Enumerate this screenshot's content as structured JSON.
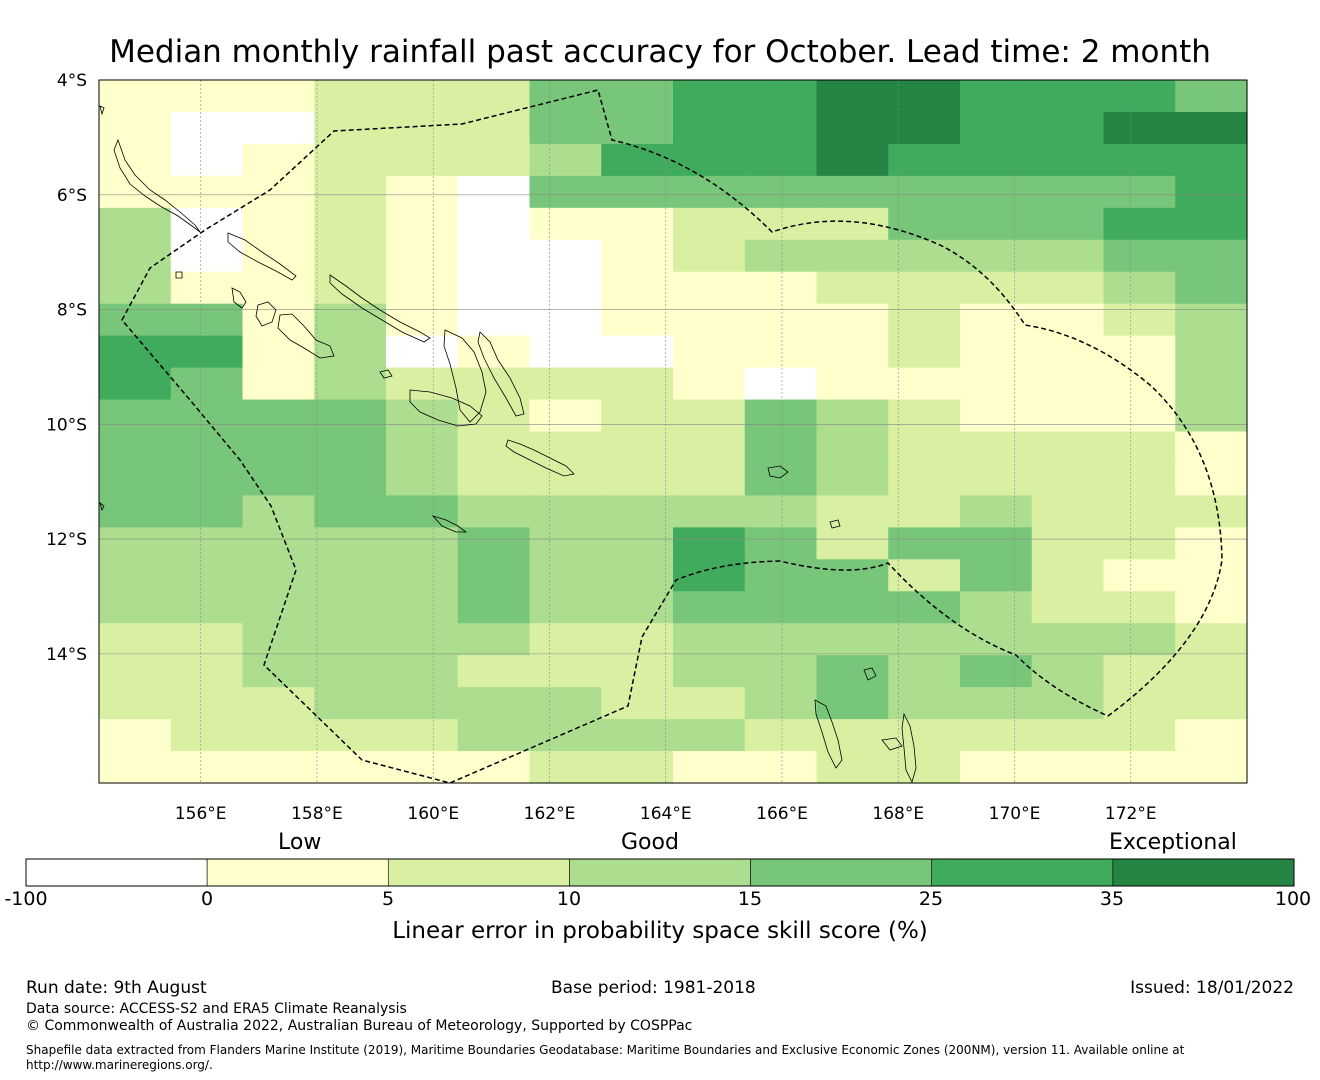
{
  "title": "Median monthly rainfall past accuracy for October. Lead time: 2 month",
  "map": {
    "lon_range": [
      154.25,
      174.0
    ],
    "lat_range": [
      -16.25,
      -4.0
    ],
    "lon_ticks": [
      "156°E",
      "158°E",
      "160°E",
      "162°E",
      "164°E",
      "166°E",
      "168°E",
      "170°E",
      "172°E"
    ],
    "lat_ticks": [
      "4°S",
      "6°S",
      "8°S",
      "10°S",
      "12°S",
      "14°S"
    ],
    "grid_rows": [
      "1112224455665554",
      "1002224455665566",
      "1012223555655555",
      "1112104444444445",
      "3012101122244455",
      "3012100123333344",
      "3112100111222234",
      "4413100111121123",
      "5513010011121113",
      "5413222210111113",
      "4444321224321113",
      "4444322224322221",
      "4444322224322221",
      "4434433333223222",
      "3333343354244221",
      "3333343354424211",
      "3333343344443221",
      "2233332233333332",
      "2233322233434322",
      "2223333223433322",
      "1222233332222221",
      "1111112211221111"
    ],
    "colors": [
      "#ffffff",
      "#ffffcc",
      "#d9f0a3",
      "#addd8e",
      "#78c679",
      "#41ab5d",
      "#238443"
    ]
  },
  "colorbar": {
    "categories": [
      "Low",
      "Good",
      "Exceptional"
    ],
    "tick_labels": [
      "-100",
      "0",
      "5",
      "10",
      "15",
      "25",
      "35",
      "100"
    ],
    "colors": [
      "#ffffff",
      "#ffffcc",
      "#d9f0a3",
      "#addd8e",
      "#78c679",
      "#41ab5d",
      "#238443"
    ],
    "label": "Linear error in probability space skill score (%)"
  },
  "footer": {
    "run_date": "Run date: 9th August",
    "base_period": "Base period: 1981-2018",
    "issued": "Issued: 18/01/2022",
    "data_source": "Data source: ACCESS-S2 and ERA5 Climate Reanalysis",
    "copyright": "© Commonwealth of Australia 2022, Australian Bureau of Meteorology, Supported by COSPPac",
    "shapefile_line1": "Shapefile data extracted from Flanders Marine Institute (2019), Maritime Boundaries Geodatabase: Maritime Boundaries and Exclusive Economic Zones (200NM), version 11. Available online at",
    "shapefile_line2": "http://www.marineregions.org/."
  }
}
